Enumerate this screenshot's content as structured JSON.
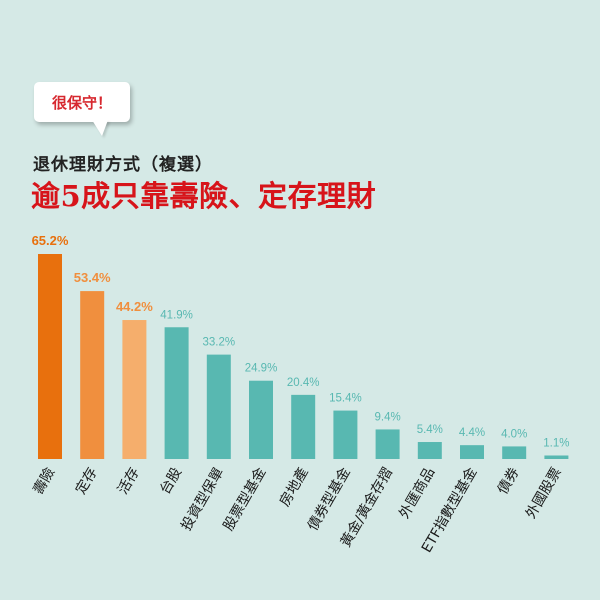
{
  "badge": {
    "label": "很保守！"
  },
  "header": {
    "subtitle": "退休理財方式（複選）",
    "title": "逾5成只靠壽險、定存理財"
  },
  "colors": {
    "background": "#d5e9e6",
    "highlight_1": "#e8700d",
    "highlight_2": "#f08f3e",
    "highlight_3": "#f5ae6c",
    "teal": "#58b8b1",
    "title_red": "#d7141a"
  },
  "chart_data": {
    "type": "bar",
    "title": "逾5成只靠壽險、定存理財",
    "subtitle": "退休理財方式（複選）",
    "categories": [
      "壽險",
      "定存",
      "活存",
      "台股",
      "投資型保單",
      "股票型基金",
      "房地產",
      "債券型基金",
      "黃金/黃金存摺",
      "外匯商品",
      "ETF指數型基金",
      "債券",
      "外國股票"
    ],
    "values": [
      65.2,
      53.4,
      44.2,
      41.9,
      33.2,
      24.9,
      20.4,
      15.4,
      9.4,
      5.4,
      4.4,
      4.0,
      1.1
    ],
    "value_labels": [
      "65.2%",
      "53.4%",
      "44.2%",
      "41.9%",
      "33.2%",
      "24.9%",
      "20.4%",
      "15.4%",
      "9.4%",
      "5.4%",
      "4.4%",
      "4.0%",
      "1.1%"
    ],
    "bar_colors": [
      "#e8700d",
      "#f08f3e",
      "#f5ae6c",
      "#58b8b1",
      "#58b8b1",
      "#58b8b1",
      "#58b8b1",
      "#58b8b1",
      "#58b8b1",
      "#58b8b1",
      "#58b8b1",
      "#58b8b1",
      "#58b8b1"
    ],
    "label_colors": [
      "#e8700d",
      "#f08f3e",
      "#f08f3e",
      "#58b8b1",
      "#58b8b1",
      "#58b8b1",
      "#58b8b1",
      "#58b8b1",
      "#58b8b1",
      "#58b8b1",
      "#58b8b1",
      "#58b8b1",
      "#58b8b1"
    ],
    "ylim": [
      0,
      70
    ],
    "grid": false,
    "xlabel": "",
    "ylabel": ""
  }
}
